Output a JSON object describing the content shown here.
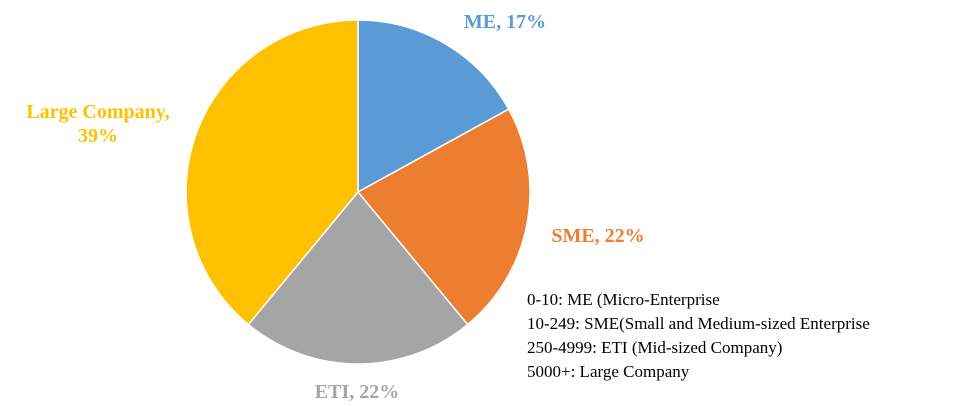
{
  "chart_data": {
    "type": "pie",
    "values": [
      17,
      22,
      22,
      39
    ],
    "value_labels": [
      "ME, 17%",
      "SME, 22%",
      "ETI, 22%",
      "Large Company, 39%"
    ],
    "colors": [
      "#5b9bd5",
      "#ed7d31",
      "#a5a5a5",
      "#ffc000"
    ],
    "annotations": [
      "0-10: ME (Micro-Enterprise",
      "10-249: SME(Small and Medium-sized Enterprise",
      "250-4999: ETI (Mid-sized Company)",
      "5000+: Large Company"
    ]
  }
}
